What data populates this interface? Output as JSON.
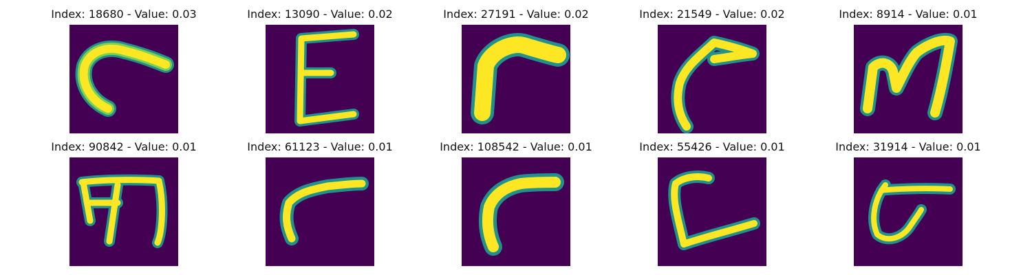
{
  "colors": {
    "background": "#440154",
    "stroke_outer": "#21918c",
    "stroke_mid": "#7ad151",
    "stroke_core": "#fde725"
  },
  "panels": [
    {
      "title": "Index: 18680 - Value: 0.03",
      "glyph": "c-curve"
    },
    {
      "title": "Index: 13090 - Value: 0.02",
      "glyph": "E"
    },
    {
      "title": "Index: 27191 - Value: 0.02",
      "glyph": "r-bold"
    },
    {
      "title": "Index: 21549 - Value: 0.02",
      "glyph": "r-hook"
    },
    {
      "title": "Index: 8914 - Value: 0.01",
      "glyph": "M"
    },
    {
      "title": "Index: 90842 - Value: 0.01",
      "glyph": "m-script"
    },
    {
      "title": "Index: 61123 - Value: 0.01",
      "glyph": "r-thin"
    },
    {
      "title": "Index: 108542 - Value: 0.01",
      "glyph": "r-wide"
    },
    {
      "title": "Index: 55426 - Value: 0.01",
      "glyph": "L-script"
    },
    {
      "title": "Index: 31914 - Value: 0.01",
      "glyph": "t-loop"
    }
  ]
}
